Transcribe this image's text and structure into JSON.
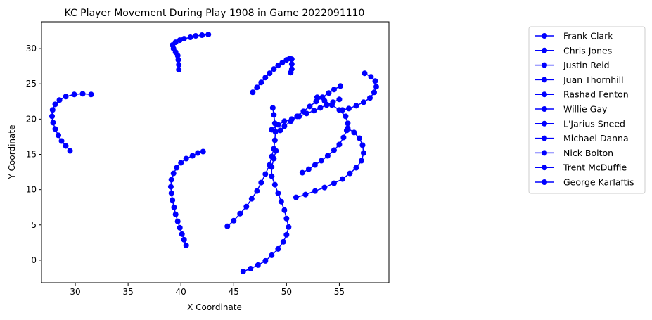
{
  "chart_data": {
    "type": "scatter",
    "title": "KC Player Movement During Play 1908 in Game 2022091110",
    "xlabel": "X Coordinate",
    "ylabel": "Y Coordinate",
    "xlim": [
      26.8,
      59.7
    ],
    "ylim": [
      -3.2,
      33.8
    ],
    "xticks": [
      30,
      35,
      40,
      45,
      50,
      55
    ],
    "yticks": [
      0,
      5,
      10,
      15,
      20,
      25,
      30
    ],
    "grid": false,
    "legend_position": "right-outside",
    "marker": "circle",
    "color": "#0000ff",
    "series": [
      {
        "name": "Frank Clark",
        "points": [
          [
            29.5,
            15.5
          ],
          [
            29.1,
            16.2
          ],
          [
            28.7,
            16.9
          ],
          [
            28.4,
            17.7
          ],
          [
            28.1,
            18.6
          ],
          [
            27.9,
            19.5
          ],
          [
            27.8,
            20.4
          ],
          [
            27.85,
            21.3
          ],
          [
            28.1,
            22.1
          ],
          [
            28.5,
            22.7
          ],
          [
            29.1,
            23.2
          ],
          [
            29.9,
            23.5
          ],
          [
            30.7,
            23.6
          ],
          [
            31.5,
            23.5
          ]
        ]
      },
      {
        "name": "Chris Jones",
        "points": [
          [
            42.6,
            32.0
          ],
          [
            42.0,
            31.9
          ],
          [
            41.4,
            31.8
          ],
          [
            40.9,
            31.6
          ],
          [
            40.3,
            31.4
          ],
          [
            39.9,
            31.2
          ],
          [
            39.5,
            30.9
          ],
          [
            39.2,
            30.5
          ],
          [
            39.3,
            30.0
          ],
          [
            39.5,
            29.5
          ],
          [
            39.7,
            29.0
          ],
          [
            39.75,
            28.4
          ],
          [
            39.8,
            27.7
          ],
          [
            39.8,
            27.0
          ]
        ]
      },
      {
        "name": "Justin Reid",
        "points": [
          [
            40.5,
            2.1
          ],
          [
            40.3,
            2.9
          ],
          [
            40.1,
            3.7
          ],
          [
            39.9,
            4.6
          ],
          [
            39.7,
            5.5
          ],
          [
            39.5,
            6.5
          ],
          [
            39.35,
            7.5
          ],
          [
            39.2,
            8.5
          ],
          [
            39.1,
            9.5
          ],
          [
            39.05,
            10.4
          ],
          [
            39.1,
            11.4
          ],
          [
            39.3,
            12.3
          ],
          [
            39.6,
            13.1
          ],
          [
            40.0,
            13.8
          ],
          [
            40.5,
            14.4
          ],
          [
            41.1,
            14.8
          ],
          [
            41.6,
            15.2
          ],
          [
            42.1,
            15.4
          ]
        ]
      },
      {
        "name": "Juan Thornhill",
        "points": [
          [
            44.4,
            4.8
          ],
          [
            45.0,
            5.6
          ],
          [
            45.6,
            6.6
          ],
          [
            46.2,
            7.6
          ],
          [
            46.7,
            8.7
          ],
          [
            47.2,
            9.8
          ],
          [
            47.6,
            11.0
          ],
          [
            48.0,
            12.2
          ],
          [
            48.4,
            13.5
          ],
          [
            48.6,
            14.7
          ],
          [
            48.8,
            15.8
          ],
          [
            48.9,
            17.0
          ],
          [
            48.95,
            18.2
          ],
          [
            48.9,
            19.4
          ],
          [
            48.8,
            20.6
          ],
          [
            48.7,
            21.6
          ]
        ]
      },
      {
        "name": "Rashad Fenton",
        "points": [
          [
            46.8,
            23.8
          ],
          [
            47.2,
            24.5
          ],
          [
            47.6,
            25.2
          ],
          [
            48.0,
            25.9
          ],
          [
            48.4,
            26.5
          ],
          [
            48.8,
            27.1
          ],
          [
            49.2,
            27.6
          ],
          [
            49.6,
            28.0
          ],
          [
            50.0,
            28.4
          ],
          [
            50.3,
            28.6
          ],
          [
            50.5,
            28.5
          ],
          [
            50.5,
            27.8
          ],
          [
            50.5,
            27.1
          ],
          [
            50.4,
            26.6
          ]
        ]
      },
      {
        "name": "Willie Gay",
        "points": [
          [
            48.6,
            18.5
          ],
          [
            49.2,
            19.2
          ],
          [
            49.8,
            19.7
          ],
          [
            50.5,
            20.0
          ],
          [
            51.2,
            20.4
          ],
          [
            51.9,
            20.8
          ],
          [
            52.6,
            21.2
          ],
          [
            53.2,
            21.6
          ],
          [
            53.8,
            22.0
          ],
          [
            54.4,
            22.4
          ],
          [
            55.0,
            22.8
          ]
        ]
      },
      {
        "name": "L'Jarius Sneed",
        "points": [
          [
            55.1,
            24.7
          ],
          [
            54.5,
            24.2
          ],
          [
            54.0,
            23.7
          ],
          [
            53.4,
            23.1
          ],
          [
            52.8,
            22.5
          ],
          [
            52.2,
            21.8
          ],
          [
            51.6,
            21.1
          ],
          [
            51.0,
            20.4
          ],
          [
            50.4,
            19.7
          ],
          [
            49.8,
            19.0
          ],
          [
            49.4,
            18.4
          ]
        ]
      },
      {
        "name": "Michael Danna",
        "points": [
          [
            57.4,
            26.5
          ],
          [
            58.0,
            26.0
          ],
          [
            58.4,
            25.4
          ],
          [
            58.5,
            24.6
          ],
          [
            58.3,
            23.8
          ],
          [
            57.9,
            23.0
          ],
          [
            57.3,
            22.4
          ],
          [
            56.6,
            21.9
          ],
          [
            55.9,
            21.5
          ],
          [
            55.3,
            21.3
          ]
        ]
      },
      {
        "name": "Nick Bolton",
        "points": [
          [
            45.9,
            -1.6
          ],
          [
            46.6,
            -1.2
          ],
          [
            47.3,
            -0.7
          ],
          [
            48.0,
            -0.1
          ],
          [
            48.6,
            0.7
          ],
          [
            49.2,
            1.6
          ],
          [
            49.7,
            2.6
          ],
          [
            50.0,
            3.6
          ],
          [
            50.2,
            4.7
          ],
          [
            50.0,
            5.9
          ],
          [
            49.8,
            7.1
          ],
          [
            49.5,
            8.3
          ],
          [
            49.2,
            9.5
          ],
          [
            48.9,
            10.7
          ],
          [
            48.6,
            11.9
          ],
          [
            48.6,
            13.2
          ],
          [
            48.8,
            14.4
          ],
          [
            49.0,
            15.5
          ]
        ]
      },
      {
        "name": "Trent McDuffie",
        "points": [
          [
            51.5,
            12.4
          ],
          [
            52.1,
            12.9
          ],
          [
            52.7,
            13.5
          ],
          [
            53.3,
            14.1
          ],
          [
            53.9,
            14.8
          ],
          [
            54.5,
            15.6
          ],
          [
            55.0,
            16.4
          ],
          [
            55.4,
            17.4
          ],
          [
            55.7,
            18.4
          ],
          [
            55.8,
            19.4
          ],
          [
            55.6,
            20.4
          ],
          [
            55.0,
            21.3
          ],
          [
            54.3,
            22.0
          ],
          [
            53.6,
            22.6
          ],
          [
            52.9,
            23.1
          ]
        ]
      },
      {
        "name": "George Karlaftis",
        "points": [
          [
            50.9,
            8.9
          ],
          [
            51.8,
            9.3
          ],
          [
            52.7,
            9.8
          ],
          [
            53.6,
            10.3
          ],
          [
            54.5,
            10.9
          ],
          [
            55.3,
            11.5
          ],
          [
            56.0,
            12.3
          ],
          [
            56.6,
            13.1
          ],
          [
            57.1,
            14.1
          ],
          [
            57.3,
            15.2
          ],
          [
            57.2,
            16.3
          ],
          [
            56.9,
            17.3
          ],
          [
            56.4,
            18.1
          ],
          [
            55.8,
            18.7
          ]
        ]
      }
    ]
  }
}
